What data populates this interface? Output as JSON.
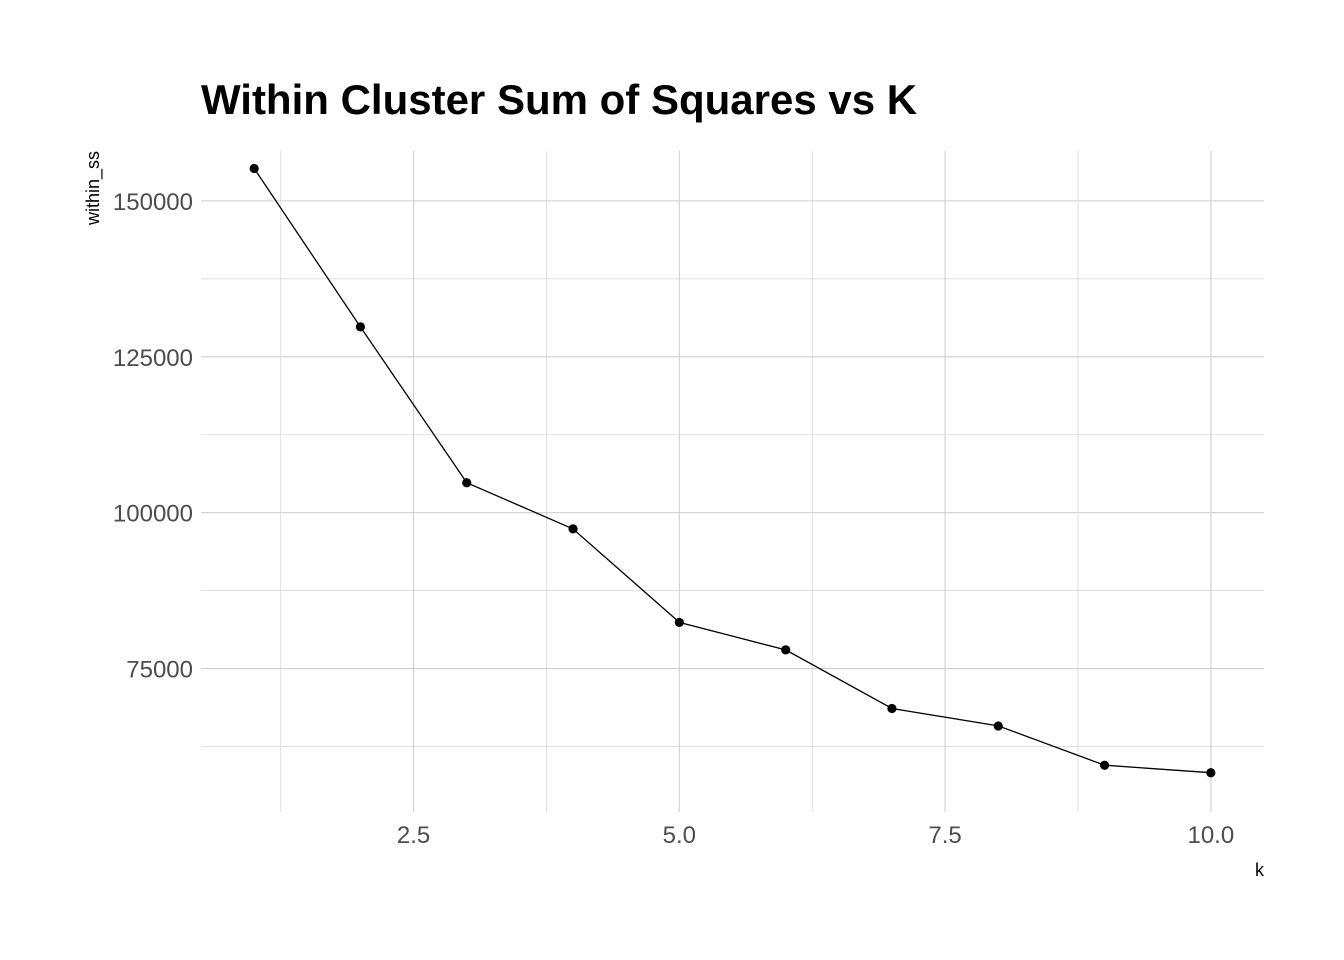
{
  "chart_data": {
    "type": "line",
    "title": "Within Cluster Sum of Squares vs K",
    "xlabel": "k",
    "ylabel": "within_ss",
    "x": [
      1,
      2,
      3,
      4,
      5,
      6,
      7,
      8,
      9,
      10
    ],
    "y": [
      155200,
      129800,
      104800,
      97400,
      82400,
      78000,
      68600,
      65800,
      59500,
      58300
    ],
    "xlim": [
      0.5,
      10.5
    ],
    "ylim": [
      52000,
      158000
    ],
    "x_ticks": [
      2.5,
      5.0,
      7.5,
      10.0
    ],
    "x_tick_labels": [
      "2.5",
      "5.0",
      "7.5",
      "10.0"
    ],
    "y_ticks": [
      75000,
      100000,
      125000,
      150000
    ],
    "y_tick_labels": [
      "75000",
      "100000",
      "125000",
      "150000"
    ],
    "grid": true,
    "points": true,
    "line_color": "#000000",
    "grid_color": "#cfcfcf"
  }
}
